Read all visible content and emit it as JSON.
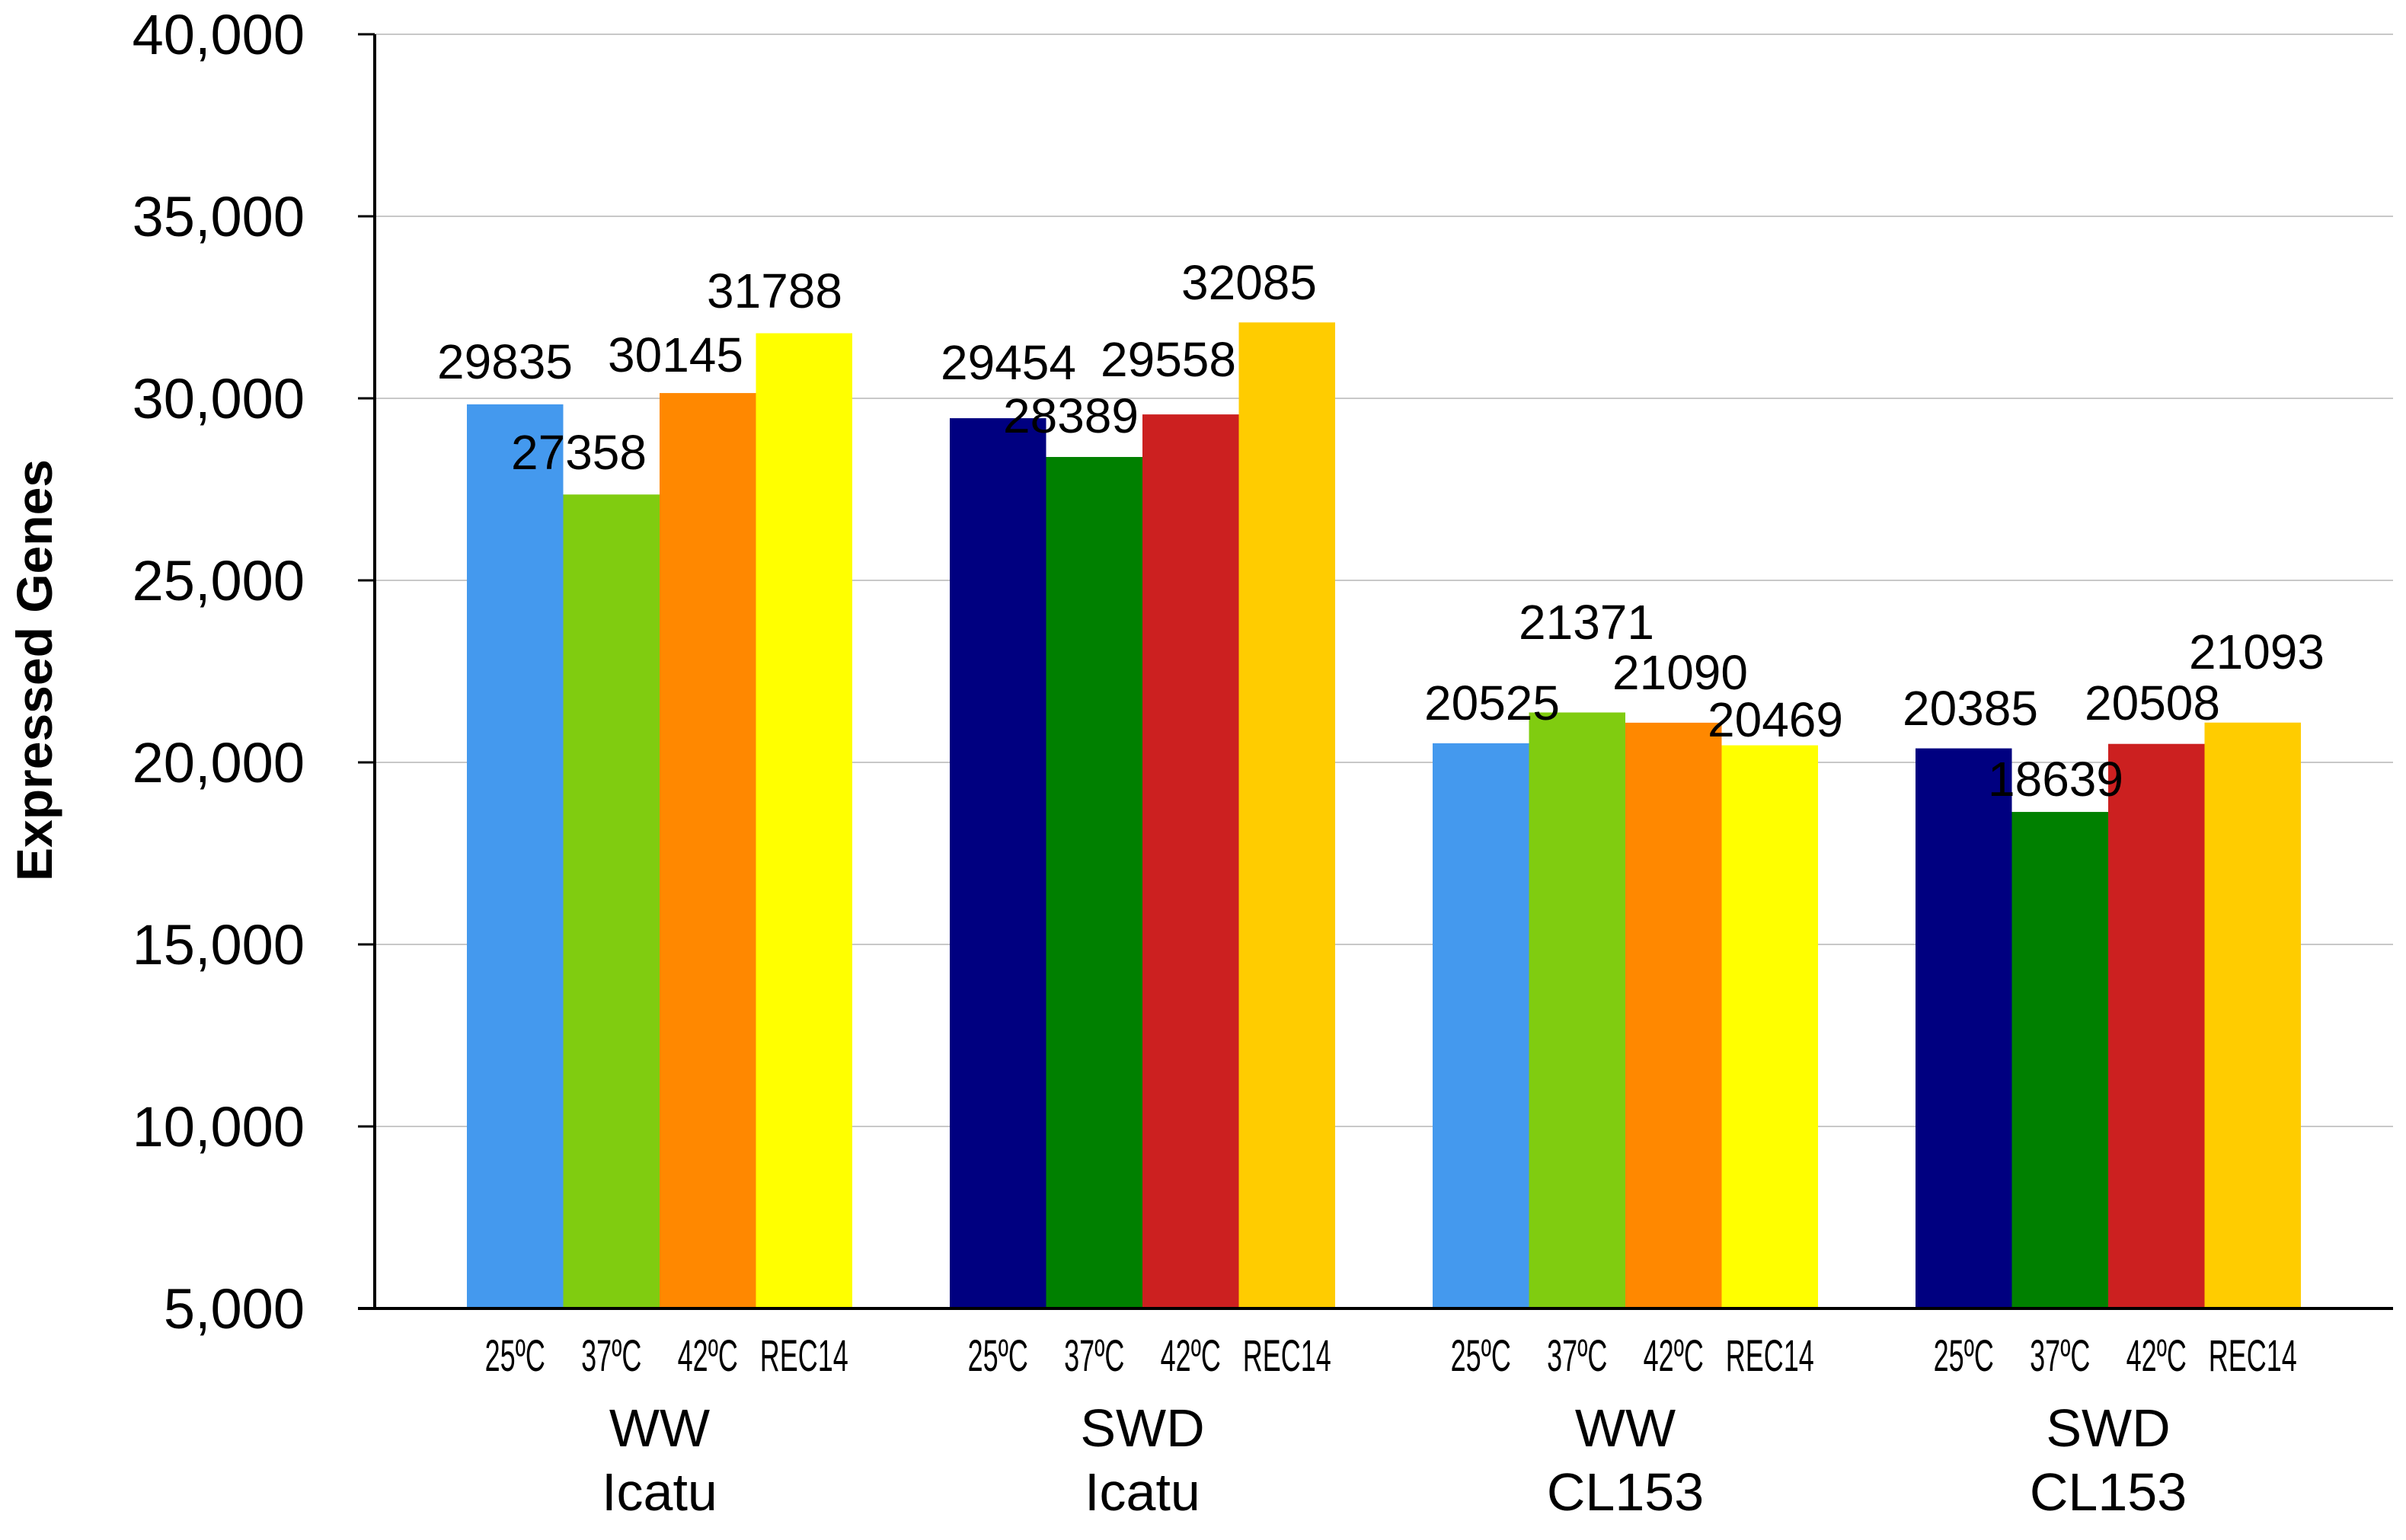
{
  "chart_data": {
    "type": "bar",
    "title": "",
    "xlabel": "",
    "ylabel": "Expressed Genes",
    "ylim": [
      5000,
      40000
    ],
    "yticks": [
      5000,
      10000,
      15000,
      20000,
      25000,
      30000,
      35000,
      40000
    ],
    "ytick_labels": [
      "5,000",
      "10,000",
      "15,000",
      "20,000",
      "25,000",
      "30,000",
      "35,000",
      "40,000"
    ],
    "grid": true,
    "groups": [
      {
        "label_lines": [
          "WW",
          "Icatu"
        ],
        "bars": [
          {
            "condition": "25ºC",
            "value": 29835,
            "color": "#4499ee"
          },
          {
            "condition": "37ºC",
            "value": 27358,
            "color": "#80cc10"
          },
          {
            "condition": "42ºC",
            "value": 30145,
            "color": "#ff8800"
          },
          {
            "condition": "REC14",
            "value": 31788,
            "color": "#ffff00"
          }
        ]
      },
      {
        "label_lines": [
          "SWD",
          "Icatu"
        ],
        "bars": [
          {
            "condition": "25ºC",
            "value": 29454,
            "color": "#000080"
          },
          {
            "condition": "37ºC",
            "value": 28389,
            "color": "#008000"
          },
          {
            "condition": "42ºC",
            "value": 29558,
            "color": "#cc2020"
          },
          {
            "condition": "REC14",
            "value": 32085,
            "color": "#ffcc00"
          }
        ]
      },
      {
        "label_lines": [
          "WW",
          "CL153"
        ],
        "bars": [
          {
            "condition": "25ºC",
            "value": 20525,
            "color": "#4499ee"
          },
          {
            "condition": "37ºC",
            "value": 21371,
            "color": "#80cc10"
          },
          {
            "condition": "42ºC",
            "value": 21090,
            "color": "#ff8800"
          },
          {
            "condition": "REC14",
            "value": 20469,
            "color": "#ffff00"
          }
        ]
      },
      {
        "label_lines": [
          "SWD",
          "CL153"
        ],
        "bars": [
          {
            "condition": "25ºC",
            "value": 20385,
            "color": "#000080"
          },
          {
            "condition": "37ºC",
            "value": 18639,
            "color": "#008000"
          },
          {
            "condition": "42ºC",
            "value": 20508,
            "color": "#cc2020"
          },
          {
            "condition": "REC14",
            "value": 21093,
            "color": "#ffcc00"
          }
        ]
      }
    ]
  }
}
